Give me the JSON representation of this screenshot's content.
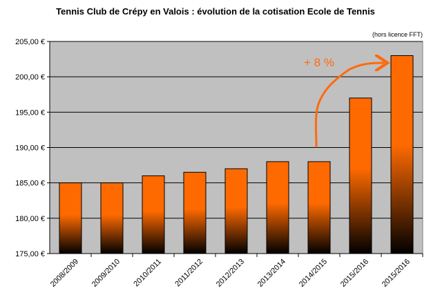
{
  "chart_data": {
    "type": "bar",
    "title": "Tennis Club de Crépy en Valois : évolution de la cotisation Ecole de Tennis",
    "note": "(hors licence FFT)",
    "categories": [
      "2008/2009",
      "2009/2010",
      "2010/2011",
      "2011/2012",
      "2012/2013",
      "2013/2014",
      "2014/2015",
      "2015/2016",
      "2015/2016"
    ],
    "values": [
      185,
      185,
      186,
      186.5,
      187,
      188,
      188,
      197,
      203
    ],
    "ylim": [
      175,
      205
    ],
    "yticks": [
      175,
      180,
      185,
      190,
      195,
      200,
      205
    ],
    "ytick_labels": [
      "175,00 €",
      "180,00 €",
      "185,00 €",
      "190,00 €",
      "195,00 €",
      "200,00 €",
      "205,00 €"
    ],
    "grid": true,
    "annotation": "+ 8 %",
    "colors": {
      "bar_top": "#ff6a00",
      "bar_bottom": "#000000",
      "plot_bg": "#c0c0c0",
      "annotation": "#ff6a0d"
    }
  }
}
